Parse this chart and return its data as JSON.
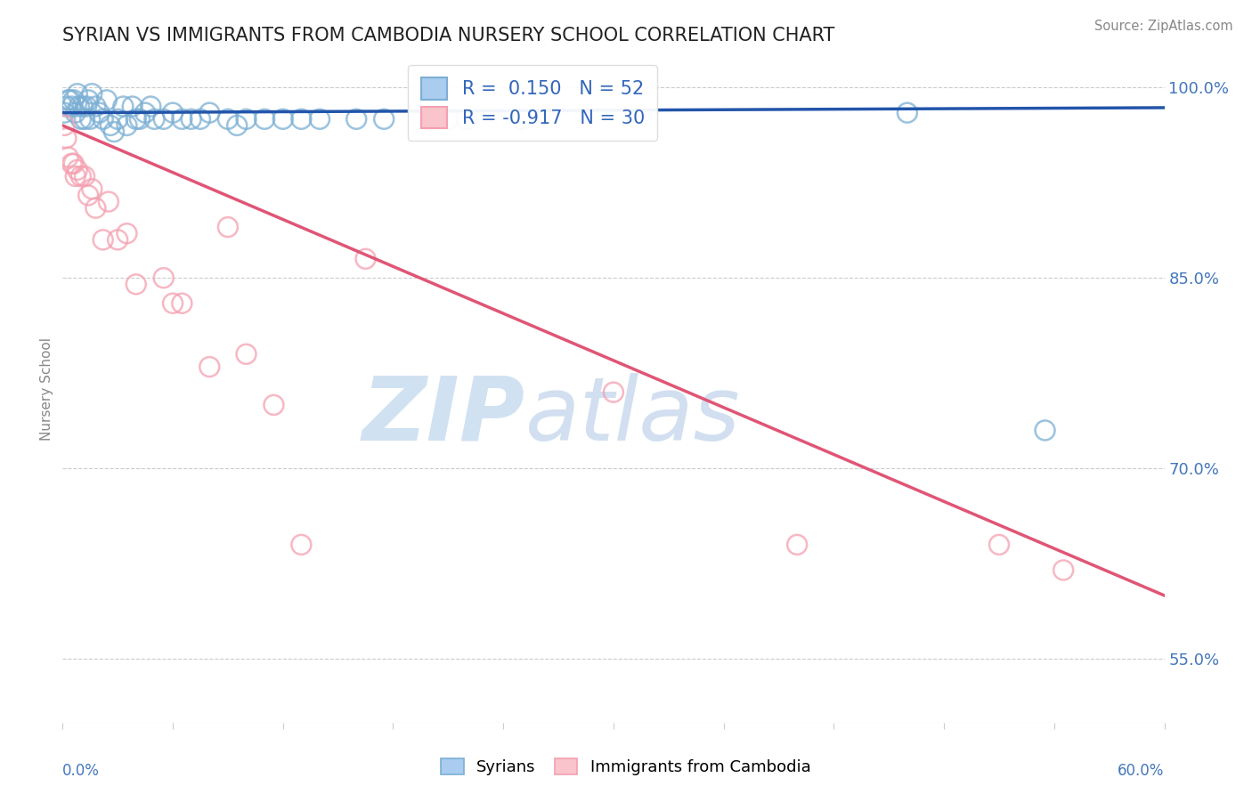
{
  "title": "SYRIAN VS IMMIGRANTS FROM CAMBODIA NURSERY SCHOOL CORRELATION CHART",
  "source": "Source: ZipAtlas.com",
  "ylabel": "Nursery School",
  "r_syrian": 0.15,
  "n_syrian": 52,
  "r_cambodia": -0.917,
  "n_cambodia": 30,
  "blue_color": "#7BAFD4",
  "pink_color": "#F4A0B0",
  "blue_line_color": "#2255AA",
  "pink_line_color": "#E05575",
  "legend_labels": [
    "Syrians",
    "Immigrants from Cambodia"
  ],
  "blue_scatter_x": [
    0.001,
    0.002,
    0.003,
    0.004,
    0.005,
    0.006,
    0.007,
    0.008,
    0.009,
    0.01,
    0.011,
    0.012,
    0.013,
    0.014,
    0.015,
    0.016,
    0.018,
    0.02,
    0.022,
    0.024,
    0.026,
    0.028,
    0.03,
    0.033,
    0.035,
    0.038,
    0.04,
    0.042,
    0.045,
    0.048,
    0.05,
    0.055,
    0.06,
    0.065,
    0.07,
    0.075,
    0.08,
    0.09,
    0.095,
    0.1,
    0.11,
    0.12,
    0.13,
    0.14,
    0.16,
    0.175,
    0.2,
    0.21,
    0.22,
    0.25,
    0.46,
    0.535
  ],
  "blue_scatter_y": [
    0.98,
    0.985,
    0.99,
    0.99,
    0.985,
    0.99,
    0.98,
    0.995,
    0.985,
    0.975,
    0.985,
    0.975,
    0.985,
    0.99,
    0.975,
    0.995,
    0.985,
    0.98,
    0.975,
    0.99,
    0.97,
    0.965,
    0.975,
    0.985,
    0.97,
    0.985,
    0.975,
    0.975,
    0.98,
    0.985,
    0.975,
    0.975,
    0.98,
    0.975,
    0.975,
    0.975,
    0.98,
    0.975,
    0.97,
    0.975,
    0.975,
    0.975,
    0.975,
    0.975,
    0.975,
    0.975,
    0.975,
    0.975,
    0.975,
    0.975,
    0.98,
    0.73
  ],
  "pink_scatter_x": [
    0.001,
    0.002,
    0.003,
    0.005,
    0.006,
    0.007,
    0.008,
    0.01,
    0.012,
    0.014,
    0.016,
    0.018,
    0.022,
    0.025,
    0.03,
    0.035,
    0.04,
    0.055,
    0.06,
    0.065,
    0.08,
    0.09,
    0.1,
    0.115,
    0.13,
    0.165,
    0.3,
    0.4,
    0.51,
    0.545
  ],
  "pink_scatter_y": [
    0.97,
    0.96,
    0.945,
    0.94,
    0.94,
    0.93,
    0.935,
    0.93,
    0.93,
    0.915,
    0.92,
    0.905,
    0.88,
    0.91,
    0.88,
    0.885,
    0.845,
    0.85,
    0.83,
    0.83,
    0.78,
    0.89,
    0.79,
    0.75,
    0.64,
    0.865,
    0.76,
    0.64,
    0.64,
    0.62
  ],
  "blue_trend_x0": 0.0,
  "blue_trend_x1": 0.6,
  "blue_trend_y0": 0.98,
  "blue_trend_y1": 0.984,
  "pink_trend_x0": 0.0,
  "pink_trend_x1": 0.6,
  "pink_trend_y0": 0.97,
  "pink_trend_y1": 0.6,
  "xmin": 0.0,
  "xmax": 0.6,
  "ymin": 0.5,
  "ymax": 1.025,
  "ytick_vals": [
    0.55,
    0.7,
    0.85,
    1.0
  ],
  "ytick_labels": [
    "55.0%",
    "70.0%",
    "85.0%",
    "100.0%"
  ]
}
